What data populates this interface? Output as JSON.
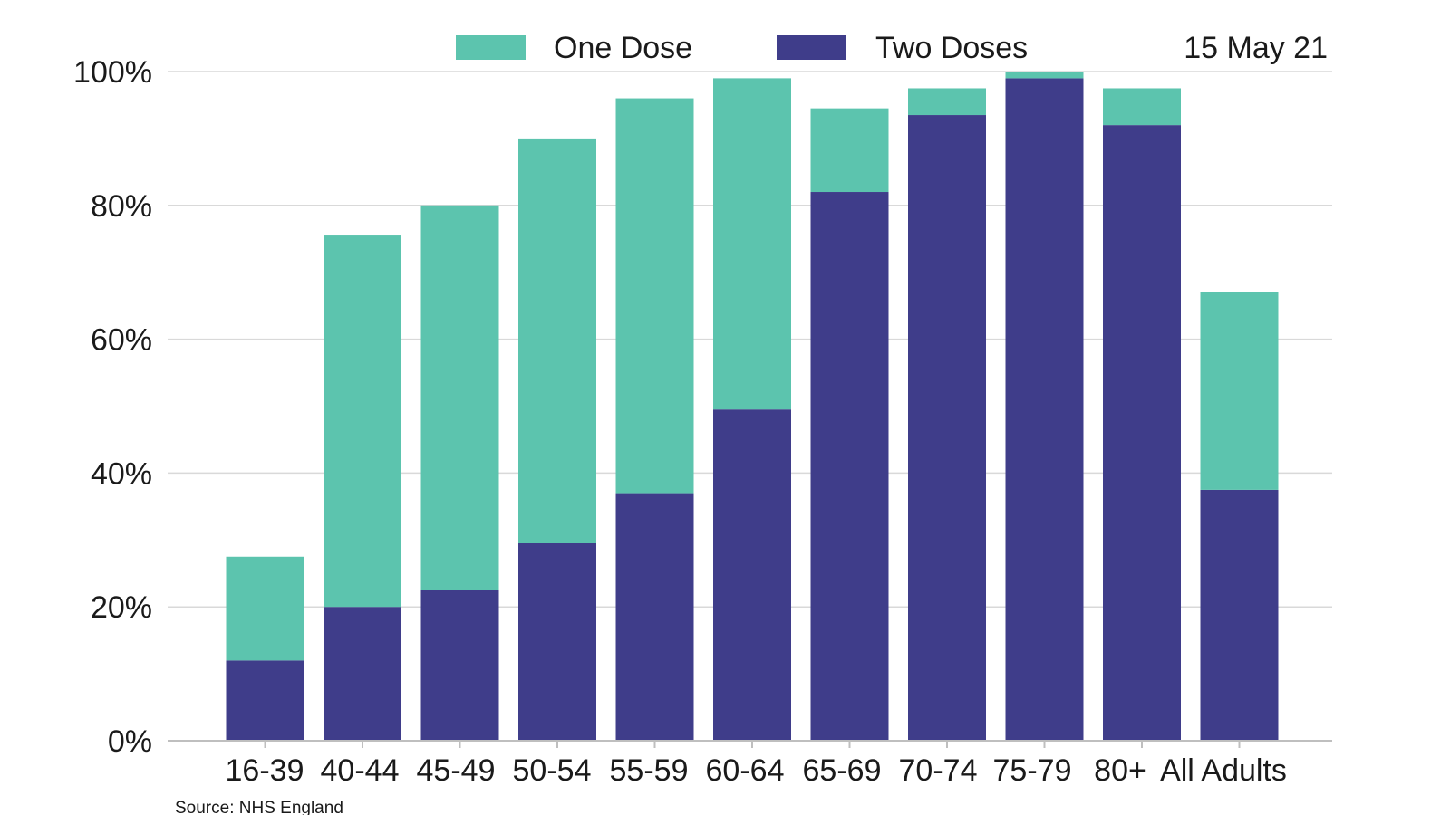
{
  "chart_data": {
    "type": "bar",
    "stacked": true,
    "title": "",
    "xlabel": "",
    "ylabel": "",
    "ylim": [
      0,
      100
    ],
    "y_ticks": [
      "0%",
      "20%",
      "40%",
      "60%",
      "80%",
      "100%"
    ],
    "y_tick_values": [
      0,
      20,
      40,
      60,
      80,
      100
    ],
    "categories": [
      "16-39",
      "40-44",
      "45-49",
      "50-54",
      "55-59",
      "60-64",
      "65-69",
      "70-74",
      "75-79",
      "80+",
      "All Adults"
    ],
    "series": [
      {
        "name": "Two Doses",
        "color": "#3f3d8a",
        "values": [
          12,
          20,
          22.5,
          29.5,
          37,
          49.5,
          82,
          93.5,
          99,
          92,
          37.5
        ]
      },
      {
        "name": "One Dose",
        "color": "#5cc4ae",
        "values": [
          15.5,
          55.5,
          57.5,
          60.5,
          59,
          49.5,
          12.5,
          4,
          1,
          5.5,
          29.5
        ]
      }
    ],
    "legend": [
      {
        "label": "One Dose",
        "color": "#5cc4ae"
      },
      {
        "label": "Two Doses",
        "color": "#3f3d8a"
      }
    ],
    "legend_placement": "top",
    "date_label": "15 May 21",
    "grid": true
  },
  "footer": {
    "source": "Source: NHS England"
  }
}
